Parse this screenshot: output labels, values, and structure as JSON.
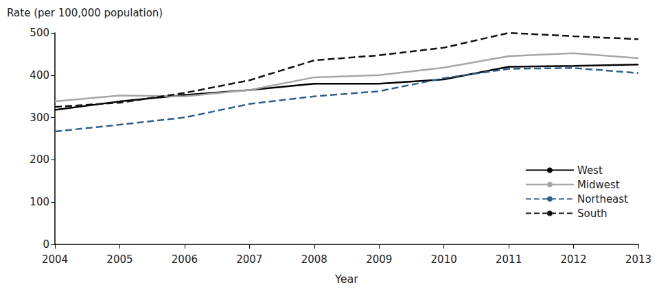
{
  "chart_data": {
    "type": "line",
    "y_label": "Rate (per 100,000 population)",
    "x_label": "Year",
    "categories": [
      "2004",
      "2005",
      "2006",
      "2007",
      "2008",
      "2009",
      "2010",
      "2011",
      "2012",
      "2013"
    ],
    "series": [
      {
        "name": "West",
        "color": "#000000",
        "line_style": "solid",
        "values": [
          318,
          338,
          353,
          365,
          380,
          380,
          390,
          420,
          422,
          425
        ]
      },
      {
        "name": "Midwest",
        "color": "#a6a6a6",
        "line_style": "solid",
        "values": [
          338,
          352,
          350,
          365,
          395,
          400,
          418,
          445,
          452,
          440
        ]
      },
      {
        "name": "Northeast",
        "color": "#2e5f8a",
        "line_style": "dashed",
        "values": [
          267,
          283,
          300,
          332,
          350,
          362,
          393,
          415,
          417,
          405
        ]
      },
      {
        "name": "South",
        "color": "#111111",
        "line_style": "dashed",
        "values": [
          325,
          335,
          358,
          388,
          435,
          447,
          465,
          500,
          492,
          485
        ]
      }
    ],
    "ylim": [
      0,
      500
    ],
    "yticks": [
      0,
      100,
      200,
      300,
      400,
      500
    ],
    "grid": false,
    "legend": "lower right"
  }
}
